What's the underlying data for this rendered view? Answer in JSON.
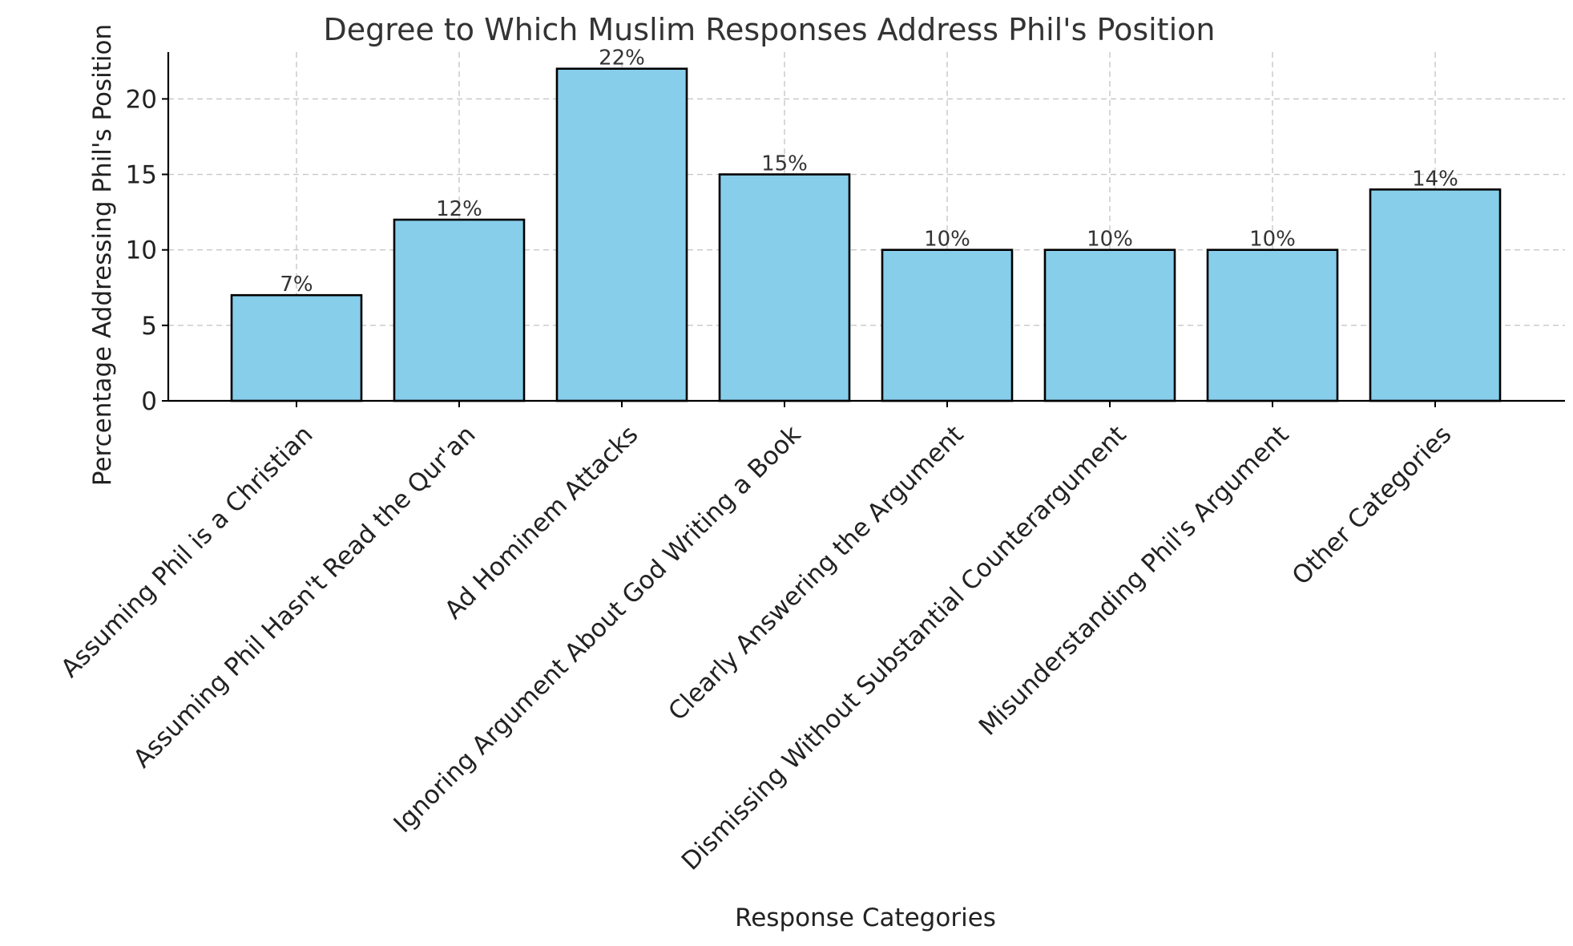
{
  "chart_data": {
    "type": "bar",
    "title": "Degree to Which Muslim Responses Address Phil's Position",
    "xlabel": "Response Categories",
    "ylabel": "Percentage Addressing Phil's Position",
    "categories": [
      "Assuming Phil is a Christian",
      "Assuming Phil Hasn't Read the Qur'an",
      "Ad Hominem Attacks",
      "Ignoring Argument About God Writing a Book",
      "Clearly Answering the Argument",
      "Dismissing Without Substantial Counterargument",
      "Misunderstanding Phil's Argument",
      "Other Categories"
    ],
    "values": [
      7,
      12,
      22,
      15,
      10,
      10,
      10,
      14
    ],
    "data_labels": [
      "7%",
      "12%",
      "22%",
      "15%",
      "10%",
      "10%",
      "10%",
      "14%"
    ],
    "yticks": [
      0,
      5,
      10,
      15,
      20
    ],
    "ylim": [
      0,
      23.1
    ],
    "grid": true,
    "bar_color": "#87ceeb",
    "bar_edge_color": "#000000"
  }
}
